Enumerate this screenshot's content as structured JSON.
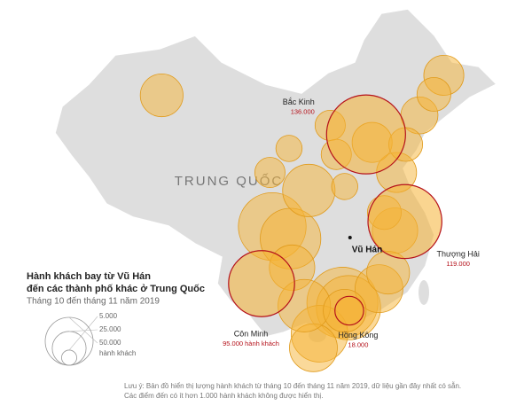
{
  "map": {
    "country_label": "TRUNG QUỐC",
    "title": [
      "Hành khách bay từ Vũ Hán",
      "đến các thành phố khác ở Trung Quốc"
    ],
    "subtitle": "Tháng 10 đến tháng 11 năm 2019",
    "origin": {
      "name": "Vũ Hán",
      "lon": 114.3,
      "lat": 29.6
    },
    "cities": [
      {
        "name": "Bắc Kinh",
        "lon": 116.4,
        "lat": 39.9,
        "value": 136000,
        "value_label": "136.000"
      },
      {
        "name": "Thượng Hải",
        "lon": 121.5,
        "lat": 31.2,
        "value": 119000,
        "value_label": "119.000"
      },
      {
        "name": "Côn Minh",
        "lon": 102.7,
        "lat": 25.0,
        "value": 95000,
        "value_label": "95.000 hành khách"
      },
      {
        "name": "Hồng Kông",
        "lon": 114.2,
        "lat": 22.3,
        "value": 18000,
        "value_label": "18.000"
      }
    ],
    "other_bubbles": [
      {
        "lon": 89.6,
        "lat": 43.8,
        "value": 40000
      },
      {
        "lon": 113.3,
        "lat": 23.1,
        "value": 110000
      },
      {
        "lon": 114.1,
        "lat": 22.6,
        "value": 90000
      },
      {
        "lon": 104.1,
        "lat": 30.7,
        "value": 100000
      },
      {
        "lon": 106.5,
        "lat": 29.5,
        "value": 80000
      },
      {
        "lon": 108.9,
        "lat": 34.3,
        "value": 60000
      },
      {
        "lon": 110.3,
        "lat": 20.0,
        "value": 70000
      },
      {
        "lon": 109.5,
        "lat": 18.6,
        "value": 50000
      },
      {
        "lon": 118.1,
        "lat": 24.5,
        "value": 50000
      },
      {
        "lon": 120.2,
        "lat": 30.3,
        "value": 45000
      },
      {
        "lon": 120.4,
        "lat": 36.1,
        "value": 35000
      },
      {
        "lon": 117.2,
        "lat": 39.1,
        "value": 35000
      },
      {
        "lon": 126.6,
        "lat": 45.8,
        "value": 35000
      },
      {
        "lon": 123.4,
        "lat": 41.8,
        "value": 30000
      },
      {
        "lon": 121.6,
        "lat": 38.9,
        "value": 25000
      },
      {
        "lon": 106.7,
        "lat": 26.6,
        "value": 45000
      },
      {
        "lon": 108.3,
        "lat": 22.8,
        "value": 60000
      },
      {
        "lon": 103.8,
        "lat": 36.1,
        "value": 20000
      },
      {
        "lon": 111.7,
        "lat": 40.8,
        "value": 20000
      },
      {
        "lon": 112.5,
        "lat": 37.9,
        "value": 20000
      },
      {
        "lon": 125.3,
        "lat": 43.9,
        "value": 25000
      },
      {
        "lon": 119.3,
        "lat": 26.1,
        "value": 40000
      },
      {
        "lon": 118.8,
        "lat": 32.1,
        "value": 25000
      },
      {
        "lon": 113.6,
        "lat": 34.7,
        "value": 15000
      },
      {
        "lon": 106.3,
        "lat": 38.5,
        "value": 15000
      },
      {
        "lon": 113.6,
        "lat": 22.3,
        "value": 40000
      }
    ],
    "legend": {
      "sizes": [
        {
          "value": 5000,
          "label": "5.000"
        },
        {
          "value": 25000,
          "label": "25.000"
        },
        {
          "value": 50000,
          "label": "50.000"
        }
      ],
      "unit": "hành khách"
    },
    "bubble_color": "#f5b335",
    "highlight_color": "#b5121b",
    "note": [
      "Lưu ý: Bản đồ hiển thị lượng hành khách từ tháng 10 đến tháng 11 năm 2019, dữ liệu gần đây nhất có sẵn.",
      "Các điểm đến có ít hơn 1.000 hành khách không được hiển thị."
    ]
  }
}
